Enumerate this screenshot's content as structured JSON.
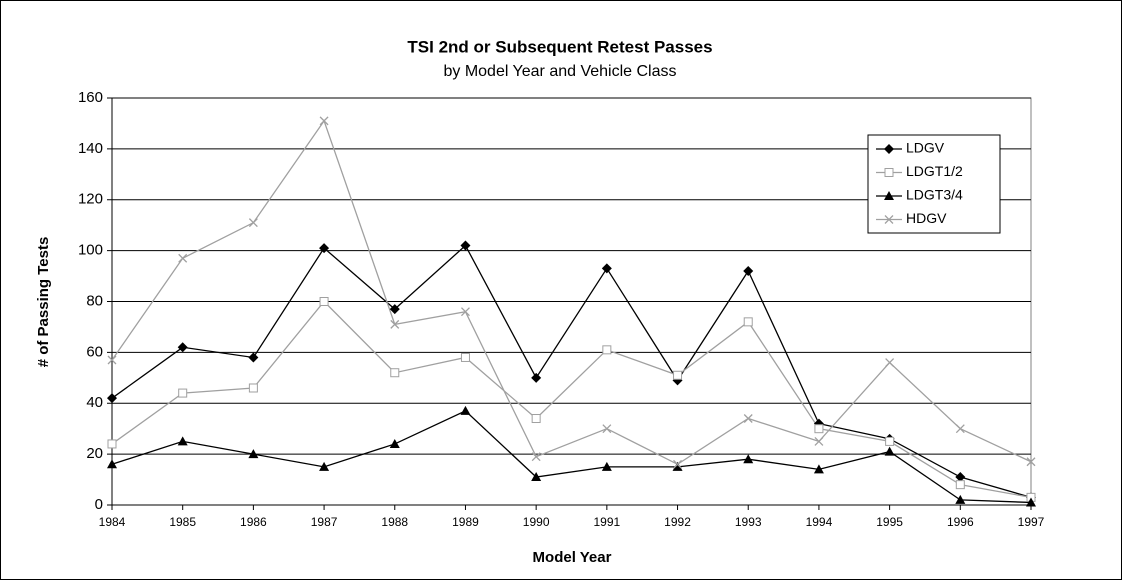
{
  "chart_data": {
    "type": "line",
    "title": "TSI 2nd or Subsequent Retest Passes",
    "subtitle": "by Model Year and Vehicle Class",
    "x_label": "Model Year",
    "y_label": "# of Passing Tests",
    "categories": [
      "1984",
      "1985",
      "1986",
      "1987",
      "1988",
      "1989",
      "1990",
      "1991",
      "1992",
      "1993",
      "1994",
      "1995",
      "1996",
      "1997"
    ],
    "series": [
      {
        "name": "LDGV",
        "color": "#000000",
        "marker": "diamond",
        "values": [
          42,
          62,
          58,
          101,
          77,
          102,
          50,
          93,
          49,
          92,
          32,
          26,
          11,
          3
        ]
      },
      {
        "name": "LDGT1/2",
        "color": "#a0a0a0",
        "marker": "square",
        "values": [
          24,
          44,
          46,
          80,
          52,
          58,
          34,
          61,
          51,
          72,
          30,
          25,
          8,
          3
        ]
      },
      {
        "name": "LDGT3/4",
        "color": "#000000",
        "marker": "triangle",
        "values": [
          16,
          25,
          20,
          15,
          24,
          37,
          11,
          15,
          15,
          18,
          14,
          21,
          2,
          1
        ]
      },
      {
        "name": "HDGV",
        "color": "#a0a0a0",
        "marker": "x",
        "values": [
          57,
          97,
          111,
          151,
          71,
          76,
          19,
          30,
          16,
          34,
          25,
          56,
          30,
          17
        ]
      }
    ],
    "ylim": [
      0,
      160
    ],
    "yticks": [
      0,
      20,
      40,
      60,
      80,
      100,
      120,
      140,
      160
    ],
    "grid": true,
    "legend": "upper right"
  }
}
